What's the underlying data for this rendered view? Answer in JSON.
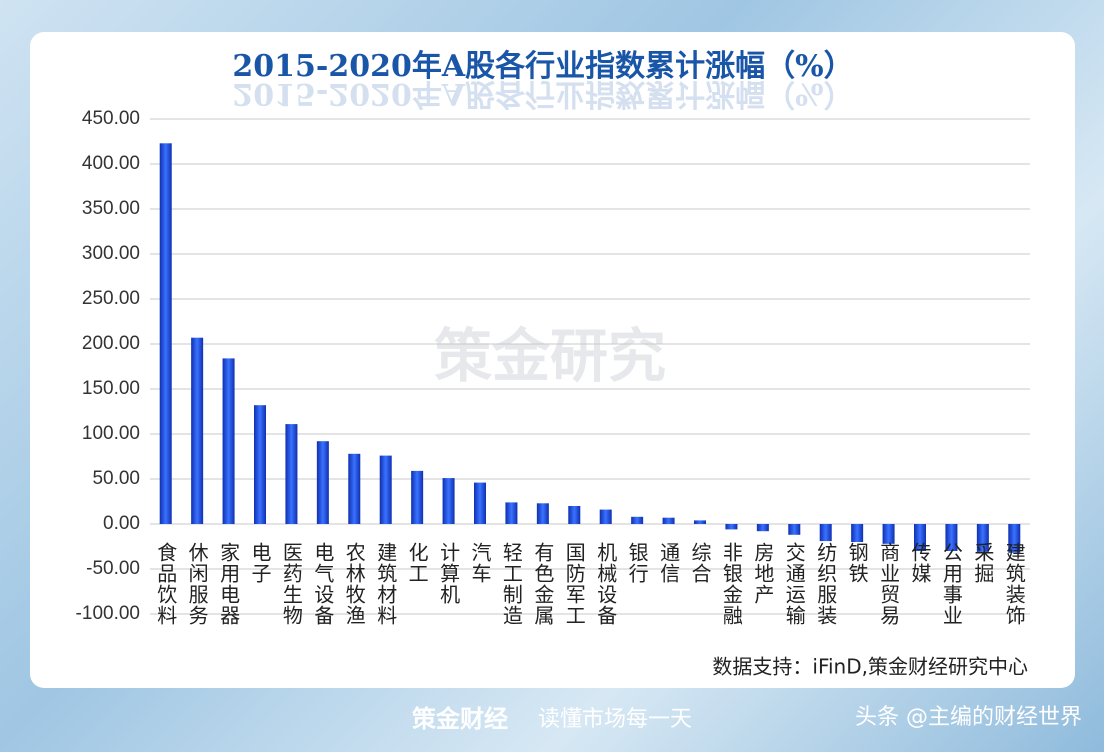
{
  "chart_data": {
    "type": "bar",
    "title": "2015-2020年A股各行业指数累计涨幅（%）",
    "categories": [
      "食品饮料",
      "休闲服务",
      "家用电器",
      "电子",
      "医药生物",
      "电气设备",
      "农林牧渔",
      "建筑材料",
      "化工",
      "计算机",
      "汽车",
      "轻工制造",
      "有色金属",
      "国防军工",
      "机械设备",
      "银行",
      "通信",
      "综合",
      "非银金融",
      "房地产",
      "交通运输",
      "纺织服装",
      "钢铁",
      "商业贸易",
      "传媒",
      "公用事业",
      "采掘",
      "建筑装饰"
    ],
    "values": [
      423,
      207,
      184,
      132,
      111,
      92,
      78,
      76,
      59,
      51,
      46,
      24,
      23,
      20,
      16,
      8,
      7,
      4,
      -6,
      -8,
      -12,
      -19,
      -20,
      -22,
      -30,
      -30,
      -31,
      -32
    ],
    "color": "#1f4fd6",
    "ylim": [
      -100,
      450
    ],
    "yticks": [
      {
        "value": -100,
        "label": "-100.00"
      },
      {
        "value": -50,
        "label": "-50.00"
      },
      {
        "value": 0,
        "label": "0.00"
      },
      {
        "value": 50,
        "label": "50.00"
      },
      {
        "value": 100,
        "label": "100.00"
      },
      {
        "value": 150,
        "label": "150.00"
      },
      {
        "value": 200,
        "label": "200.00"
      },
      {
        "value": 250,
        "label": "250.00"
      },
      {
        "value": 300,
        "label": "300.00"
      },
      {
        "value": 350,
        "label": "350.00"
      },
      {
        "value": 400,
        "label": "400.00"
      },
      {
        "value": 450,
        "label": "450.00"
      }
    ],
    "grid": true,
    "source": "数据支持：iFinD,策金财经研究中心",
    "watermark": "策金研究",
    "footer_brand": "策金财经",
    "footer_slogan": "读懂市场每一天",
    "footer_account": "头条 @主编的财经世界"
  }
}
